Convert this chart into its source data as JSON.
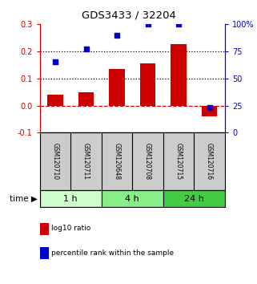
{
  "title": "GDS3433 / 32204",
  "samples": [
    "GSM120710",
    "GSM120711",
    "GSM120648",
    "GSM120708",
    "GSM120715",
    "GSM120716"
  ],
  "log10_ratio": [
    0.04,
    0.05,
    0.135,
    0.155,
    0.225,
    -0.04
  ],
  "percentile_rank": [
    65,
    77,
    90,
    100,
    100,
    23
  ],
  "bar_color": "#cc0000",
  "dot_color": "#0000cc",
  "left_ylim": [
    -0.1,
    0.3
  ],
  "right_ylim": [
    0,
    100
  ],
  "left_yticks": [
    -0.1,
    0.0,
    0.1,
    0.2,
    0.3
  ],
  "right_yticks": [
    0,
    25,
    50,
    75,
    100
  ],
  "dotted_lines": [
    0.1,
    0.2
  ],
  "zero_line_color": "#cc0000",
  "time_groups": [
    {
      "label": "1 h",
      "start": 0,
      "end": 2,
      "color": "#ccffcc"
    },
    {
      "label": "4 h",
      "start": 2,
      "end": 4,
      "color": "#88ee88"
    },
    {
      "label": "24 h",
      "start": 4,
      "end": 6,
      "color": "#44cc44"
    }
  ],
  "legend_items": [
    {
      "label": "log10 ratio",
      "color": "#cc0000"
    },
    {
      "label": "percentile rank within the sample",
      "color": "#0000cc"
    }
  ],
  "background_color": "#ffffff",
  "sample_box_color": "#cccccc"
}
